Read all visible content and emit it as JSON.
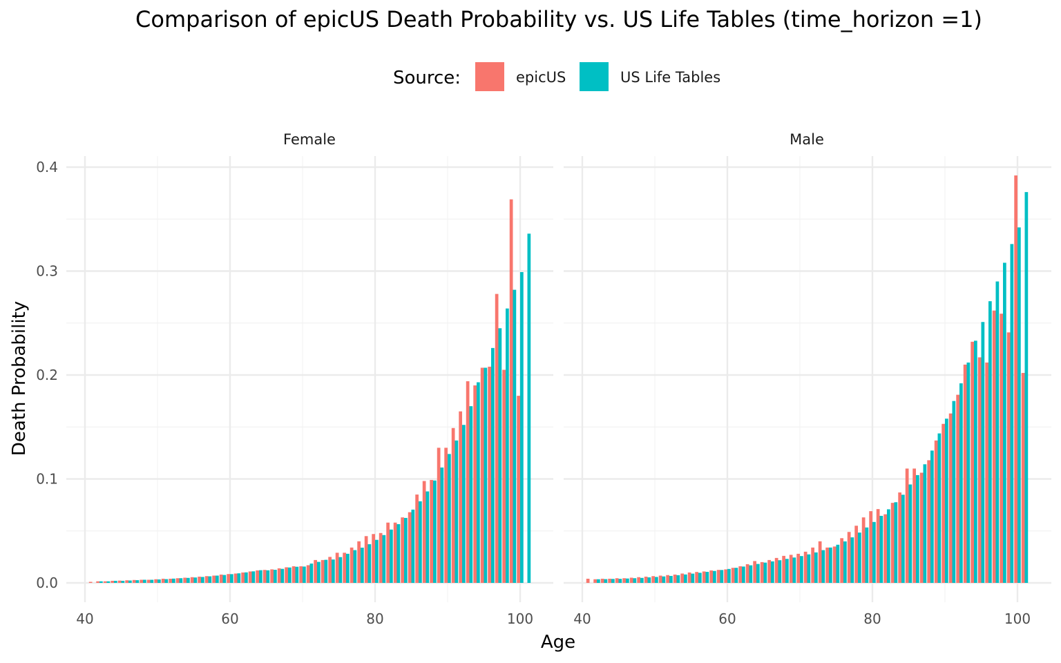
{
  "chart_data": {
    "type": "bar",
    "title": "Comparison of epicUS Death Probability vs. US Life Tables (time_horizon =1)",
    "xlabel": "Age",
    "ylabel": "Death Probability",
    "legend": {
      "title": "Source:",
      "position": "top"
    },
    "xlim": [
      40,
      101
    ],
    "ylim": [
      0,
      0.4
    ],
    "x_ticks": [
      "40",
      "60",
      "80",
      "100"
    ],
    "y_ticks": [
      "0.0",
      "0.1",
      "0.2",
      "0.3",
      "0.4"
    ],
    "grid": true,
    "x": [
      41,
      42,
      43,
      44,
      45,
      46,
      47,
      48,
      49,
      50,
      51,
      52,
      53,
      54,
      55,
      56,
      57,
      58,
      59,
      60,
      61,
      62,
      63,
      64,
      65,
      66,
      67,
      68,
      69,
      70,
      71,
      72,
      73,
      74,
      75,
      76,
      77,
      78,
      79,
      80,
      81,
      82,
      83,
      84,
      85,
      86,
      87,
      88,
      89,
      90,
      91,
      92,
      93,
      94,
      95,
      96,
      97,
      98,
      99,
      100,
      101
    ],
    "colors": {
      "epicUS": "#F8766D",
      "US Life Tables": "#00BFC4"
    },
    "panels": [
      {
        "name": "Female",
        "series": [
          {
            "name": "epicUS",
            "values": [
              0.001,
              0.0015,
              0.0015,
              0.002,
              0.0022,
              0.0025,
              0.0028,
              0.003,
              0.003,
              0.0035,
              0.004,
              0.004,
              0.0045,
              0.005,
              0.0055,
              0.006,
              0.0065,
              0.007,
              0.008,
              0.0085,
              0.009,
              0.01,
              0.011,
              0.012,
              0.0125,
              0.013,
              0.014,
              0.015,
              0.016,
              0.016,
              0.017,
              0.022,
              0.022,
              0.025,
              0.029,
              0.029,
              0.034,
              0.04,
              0.045,
              0.047,
              0.048,
              0.058,
              0.058,
              0.063,
              0.068,
              0.085,
              0.098,
              0.099,
              0.13,
              0.13,
              0.149,
              0.165,
              0.194,
              0.19,
              0.207,
              0.208,
              0.278,
              0.205,
              0.369,
              0.18,
              null
            ]
          },
          {
            "name": "US Life Tables",
            "values": [
              null,
              0.0015,
              0.0015,
              0.002,
              0.002,
              0.0023,
              0.0026,
              0.003,
              0.003,
              0.0033,
              0.0036,
              0.0041,
              0.0045,
              0.0048,
              0.0052,
              0.0057,
              0.0063,
              0.007,
              0.0076,
              0.0084,
              0.0092,
              0.0101,
              0.0111,
              0.0122,
              0.0121,
              0.0126,
              0.0135,
              0.0148,
              0.0155,
              0.0157,
              0.0186,
              0.0202,
              0.0222,
              0.0225,
              0.0248,
              0.028,
              0.0315,
              0.0339,
              0.0372,
              0.0414,
              0.046,
              0.0513,
              0.0565,
              0.0625,
              0.0705,
              0.0785,
              0.088,
              0.0985,
              0.111,
              0.124,
              0.137,
              0.152,
              0.17,
              0.193,
              0.207,
              0.226,
              0.245,
              0.264,
              0.282,
              0.299,
              0.336
            ]
          }
        ]
      },
      {
        "name": "Male",
        "series": [
          {
            "name": "epicUS",
            "values": [
              0.004,
              0.0035,
              0.004,
              0.004,
              0.0045,
              0.0045,
              0.005,
              0.0055,
              0.006,
              0.0065,
              0.007,
              0.0075,
              0.008,
              0.009,
              0.01,
              0.0105,
              0.011,
              0.012,
              0.0125,
              0.013,
              0.0145,
              0.016,
              0.018,
              0.021,
              0.02,
              0.022,
              0.024,
              0.026,
              0.027,
              0.028,
              0.03,
              0.034,
              0.04,
              0.034,
              0.035,
              0.043,
              0.049,
              0.055,
              0.063,
              0.069,
              0.071,
              0.066,
              0.077,
              0.087,
              0.11,
              0.11,
              0.106,
              0.118,
              0.137,
              0.153,
              0.163,
              0.181,
              0.21,
              0.232,
              0.217,
              0.212,
              0.262,
              0.259,
              0.241,
              0.392,
              0.202
            ]
          },
          {
            "name": "US Life Tables",
            "values": [
              null,
              0.0035,
              0.0036,
              0.0038,
              0.0039,
              0.0042,
              0.0045,
              0.0048,
              0.0053,
              0.0057,
              0.0062,
              0.0067,
              0.0074,
              0.0081,
              0.0089,
              0.0097,
              0.0106,
              0.0115,
              0.0124,
              0.0134,
              0.0145,
              0.0157,
              0.0169,
              0.0182,
              0.0195,
              0.0207,
              0.0218,
              0.0231,
              0.0244,
              0.0258,
              0.0274,
              0.0293,
              0.0315,
              0.034,
              0.0367,
              0.0399,
              0.0438,
              0.0484,
              0.0533,
              0.0586,
              0.0645,
              0.0708,
              0.0776,
              0.0848,
              0.0947,
              0.1037,
              0.1141,
              0.1273,
              0.1438,
              0.158,
              0.175,
              0.192,
              0.212,
              0.233,
              0.251,
              0.271,
              0.29,
              0.308,
              0.326,
              0.342,
              0.376
            ]
          }
        ]
      }
    ]
  }
}
